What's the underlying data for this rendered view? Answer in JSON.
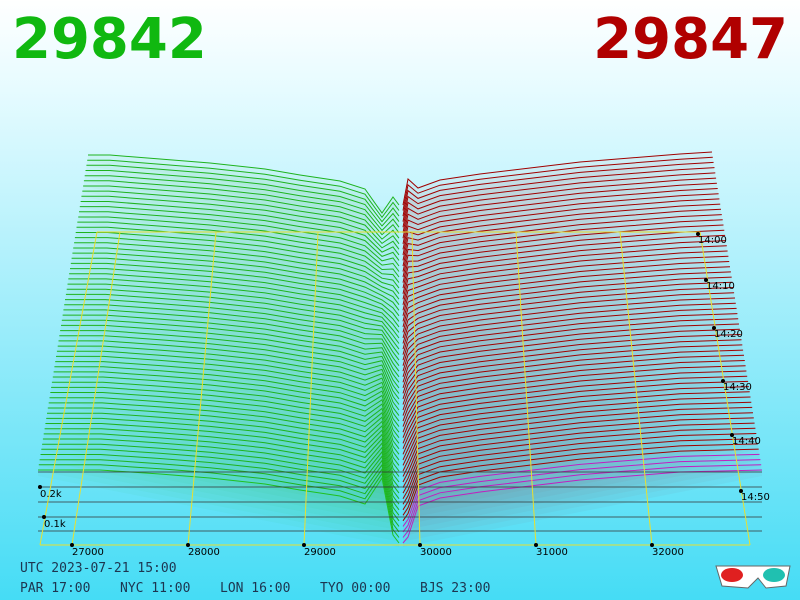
{
  "header": {
    "bid": "29842",
    "ask": "29847"
  },
  "price_axis": {
    "labels": [
      "27000",
      "28000",
      "29000",
      "30000",
      "31000",
      "32000"
    ]
  },
  "time_axis": {
    "labels": [
      "14:00",
      "14:10",
      "14:20",
      "14:30",
      "14:40",
      "14:50"
    ]
  },
  "volume_axis": {
    "labels": [
      "0.2k",
      "0.1k"
    ]
  },
  "clock": {
    "utc": "UTC 2023-07-21 15:00",
    "cities": [
      "PAR 17:00",
      "NYC 11:00",
      "LON 16:00",
      "TYO 00:00",
      "BJS 23:00"
    ]
  }
}
